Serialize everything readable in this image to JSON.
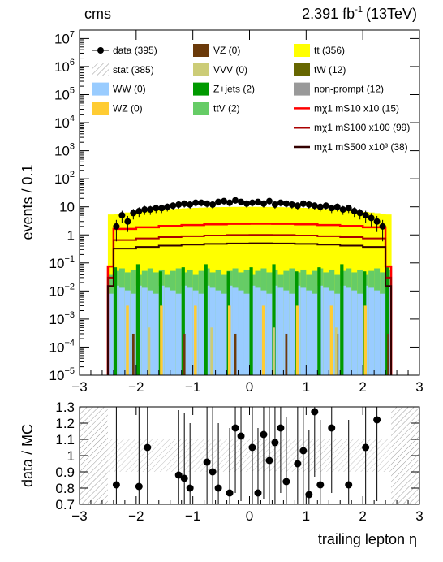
{
  "header": {
    "experiment": "cms",
    "lumi": "2.391 fb",
    "lumi_exp": "-1",
    "energy": "(13TeV)"
  },
  "chart_data": [
    {
      "type": "bar",
      "stacked": true,
      "log_scale": true,
      "xlabel": "trailing lepton η",
      "ylabel": "events / 0.1",
      "xlim": [
        -3,
        3
      ],
      "ylim": [
        1e-05,
        20000000.0
      ],
      "x_ticks": [
        "−3",
        "−2",
        "−1",
        "0",
        "1",
        "2",
        "3"
      ],
      "y_ticks": [
        {
          "base": "10",
          "exp": "7"
        },
        {
          "base": "10",
          "exp": "6"
        },
        {
          "base": "10",
          "exp": "5"
        },
        {
          "base": "10",
          "exp": "4"
        },
        {
          "base": "10",
          "exp": "3"
        },
        {
          "base": "10",
          "exp": "2"
        },
        {
          "base": "10",
          "exp": ""
        },
        {
          "base": "1",
          "exp": ""
        },
        {
          "base": "10",
          "exp": "−1"
        },
        {
          "base": "10",
          "exp": "−2"
        },
        {
          "base": "10",
          "exp": "−3"
        },
        {
          "base": "10",
          "exp": "−4"
        },
        {
          "base": "10",
          "exp": "−5"
        }
      ],
      "legend": [
        {
          "label": "data (395)",
          "kind": "marker",
          "color": "#000000"
        },
        {
          "label": "VZ (0)",
          "kind": "fill",
          "color": "#6b3a0a"
        },
        {
          "label": "tt (356)",
          "kind": "fill",
          "color": "#ffff00"
        },
        {
          "label": "stat (385)",
          "kind": "hatch",
          "color": "#9a9a9a"
        },
        {
          "label": "VVV (0)",
          "kind": "fill",
          "color": "#cccc77"
        },
        {
          "label": "tW (12)",
          "kind": "fill",
          "color": "#666600"
        },
        {
          "label": "WW (0)",
          "kind": "fill",
          "color": "#99ccff"
        },
        {
          "label": "Z+jets (2)",
          "kind": "fill",
          "color": "#009900"
        },
        {
          "label": "non-prompt (12)",
          "kind": "fill",
          "color": "#999999"
        },
        {
          "label": "WZ (0)",
          "kind": "fill",
          "color": "#ffcc33"
        },
        {
          "label": "ttV (2)",
          "kind": "fill",
          "color": "#66cc66"
        },
        {
          "label": "mχ1 mS10 x10 (15)",
          "kind": "line",
          "color": "#ff0000"
        },
        {
          "label": "mχ1 mS100 x100 (99)",
          "kind": "line",
          "color": "#aa0000"
        },
        {
          "label": "mχ1 mS500 x10³ (38)",
          "kind": "line",
          "color": "#330000"
        }
      ],
      "data_points": {
        "x": [
          -2.35,
          -2.25,
          -2.15,
          -2.05,
          -1.95,
          -1.85,
          -1.75,
          -1.65,
          -1.55,
          -1.45,
          -1.35,
          -1.25,
          -1.15,
          -1.05,
          -0.95,
          -0.85,
          -0.75,
          -0.65,
          -0.55,
          -0.45,
          -0.35,
          -0.25,
          -0.15,
          -0.05,
          0.05,
          0.15,
          0.25,
          0.35,
          0.45,
          0.55,
          0.65,
          0.75,
          0.85,
          0.95,
          1.05,
          1.15,
          1.25,
          1.35,
          1.45,
          1.55,
          1.65,
          1.75,
          1.85,
          1.95,
          2.05,
          2.15,
          2.25,
          2.35
        ],
        "y": [
          2,
          5,
          3,
          6,
          7,
          8,
          8,
          9,
          9,
          10,
          11,
          12,
          13,
          12,
          14,
          14,
          13,
          12,
          15,
          16,
          14,
          17,
          15,
          13,
          14,
          15,
          13,
          16,
          12,
          14,
          13,
          12,
          11,
          13,
          12,
          11,
          10,
          11,
          9,
          10,
          8,
          9,
          7,
          6,
          5,
          4,
          3,
          2
        ]
      },
      "signal_levels": {
        "mS10_x10": 2.5,
        "mS100_x100": 1.0,
        "mS500_x1000": 0.5
      }
    },
    {
      "type": "scatter",
      "xlabel": "trailing lepton η",
      "ylabel": "data / MC",
      "xlim": [
        -3,
        3
      ],
      "ylim": [
        0.7,
        1.3
      ],
      "x_ticks": [
        "−3",
        "−2",
        "−1",
        "0",
        "1",
        "2",
        "3"
      ],
      "y_ticks": [
        "1.3",
        "1.2",
        "1.1",
        "1",
        "0.9",
        "0.8",
        "0.7"
      ],
      "x": [
        -2.35,
        -1.95,
        -1.8,
        -1.25,
        -1.15,
        -1.05,
        -0.75,
        -0.65,
        -0.55,
        -0.35,
        -0.25,
        -0.15,
        0.05,
        0.15,
        0.25,
        0.35,
        0.45,
        0.55,
        0.65,
        0.85,
        0.95,
        1.05,
        1.15,
        1.25,
        1.45,
        1.75,
        2.05,
        2.25
      ],
      "y": [
        0.82,
        0.81,
        1.05,
        0.88,
        0.86,
        0.8,
        0.96,
        0.9,
        0.8,
        0.77,
        1.17,
        1.12,
        1.05,
        0.77,
        1.13,
        0.97,
        1.08,
        1.17,
        0.84,
        0.95,
        1.03,
        0.76,
        1.27,
        0.82,
        1.17,
        0.82,
        1.05,
        1.22
      ],
      "err": [
        0.5,
        0.5,
        0.4,
        0.4,
        0.4,
        0.4,
        0.4,
        0.4,
        0.4,
        0.4,
        0.4,
        0.4,
        0.4,
        0.4,
        0.4,
        0.4,
        0.4,
        0.4,
        0.4,
        0.4,
        0.4,
        0.4,
        0.4,
        0.4,
        0.4,
        0.4,
        0.5,
        0.5
      ]
    }
  ]
}
